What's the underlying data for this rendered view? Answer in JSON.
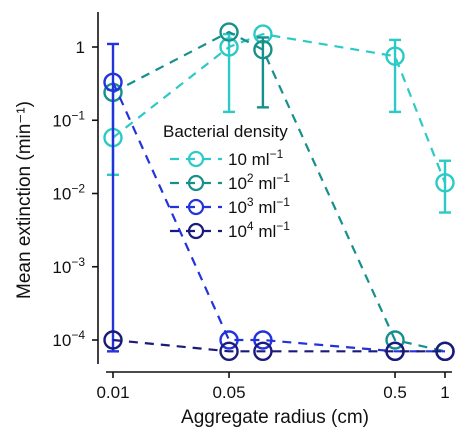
{
  "chart_data": {
    "type": "line",
    "xlabel": "Aggregate radius (cm)",
    "ylabel": "Mean extinction (min⁻¹)",
    "x_scale": "log",
    "y_scale": "log",
    "xlim": [
      0.0085,
      1.2
    ],
    "ylim": [
      4e-05,
      3.2
    ],
    "x_ticks": [
      {
        "value": 0.01,
        "label": "0.01"
      },
      {
        "value": 0.05,
        "label": "0.05"
      },
      {
        "value": 0.5,
        "label": "0.5"
      },
      {
        "value": 1,
        "label": "1"
      }
    ],
    "y_ticks": [
      {
        "value": 1,
        "base": "1",
        "exp": ""
      },
      {
        "value": 0.1,
        "base": "10",
        "exp": "−1"
      },
      {
        "value": 0.01,
        "base": "10",
        "exp": "−2"
      },
      {
        "value": 0.001,
        "base": "10",
        "exp": "−3"
      },
      {
        "value": 0.0001,
        "base": "10",
        "exp": "−4"
      }
    ],
    "x": [
      0.01,
      0.05,
      0.08,
      0.5,
      1
    ],
    "legend": {
      "title": "Bacterial density",
      "position": "center",
      "entries": [
        {
          "base": "10 ml",
          "exp": "−1"
        },
        {
          "base": "10",
          "sup1": "2",
          "mid": " ml",
          "exp": "−1"
        },
        {
          "base": "10",
          "sup1": "3",
          "mid": " ml",
          "exp": "−1"
        },
        {
          "base": "10",
          "sup1": "4",
          "mid": " ml",
          "exp": "−1"
        }
      ]
    },
    "series": [
      {
        "color": "#2ccac6",
        "values": [
          0.058,
          1.0,
          1.5,
          0.75,
          0.014
        ],
        "err_low": [
          0.018,
          0.13,
          null,
          0.13,
          0.0055
        ],
        "err_high": [
          0.26,
          1.5,
          null,
          1.25,
          0.028
        ]
      },
      {
        "color": "#17908c",
        "values": [
          0.24,
          1.6,
          0.92,
          0.0001,
          7e-05
        ],
        "err_low": [
          null,
          null,
          0.15,
          null,
          null
        ],
        "err_high": [
          null,
          null,
          1.35,
          null,
          null
        ]
      },
      {
        "color": "#2233dd",
        "values": [
          0.33,
          0.0001,
          0.0001,
          7e-05,
          7e-05
        ],
        "err_low": [
          7e-05,
          null,
          null,
          null,
          null
        ],
        "err_high": [
          1.1,
          null,
          null,
          null,
          null
        ]
      },
      {
        "color": "#1a1a7a",
        "values": [
          0.0001,
          7e-05,
          7e-05,
          7e-05,
          7e-05
        ],
        "err_low": [
          null,
          null,
          null,
          null,
          null
        ],
        "err_high": [
          null,
          null,
          null,
          null,
          null
        ]
      }
    ]
  }
}
